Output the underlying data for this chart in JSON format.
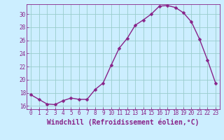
{
  "x": [
    0,
    1,
    2,
    3,
    4,
    5,
    6,
    7,
    8,
    9,
    10,
    11,
    12,
    13,
    14,
    15,
    16,
    17,
    18,
    19,
    20,
    21,
    22,
    23
  ],
  "y": [
    17.7,
    17.0,
    16.3,
    16.2,
    16.8,
    17.2,
    17.0,
    17.0,
    18.5,
    19.5,
    22.2,
    24.8,
    26.3,
    28.3,
    29.1,
    30.0,
    31.2,
    31.3,
    31.0,
    30.2,
    28.8,
    26.2,
    23.0,
    19.5
  ],
  "line_color": "#882288",
  "marker_color": "#882288",
  "bg_color": "#cceeff",
  "grid_color": "#99cccc",
  "xlabel": "Windchill (Refroidissement éolien,°C)",
  "ylabel": "",
  "ylim": [
    15.5,
    31.5
  ],
  "xlim": [
    -0.5,
    23.5
  ],
  "yticks": [
    16,
    18,
    20,
    22,
    24,
    26,
    28,
    30
  ],
  "xticks": [
    0,
    1,
    2,
    3,
    4,
    5,
    6,
    7,
    8,
    9,
    10,
    11,
    12,
    13,
    14,
    15,
    16,
    17,
    18,
    19,
    20,
    21,
    22,
    23
  ],
  "tick_color": "#882288",
  "tick_fontsize": 5.5,
  "xlabel_fontsize": 7.0,
  "marker_size": 2.5,
  "line_width": 1.0
}
